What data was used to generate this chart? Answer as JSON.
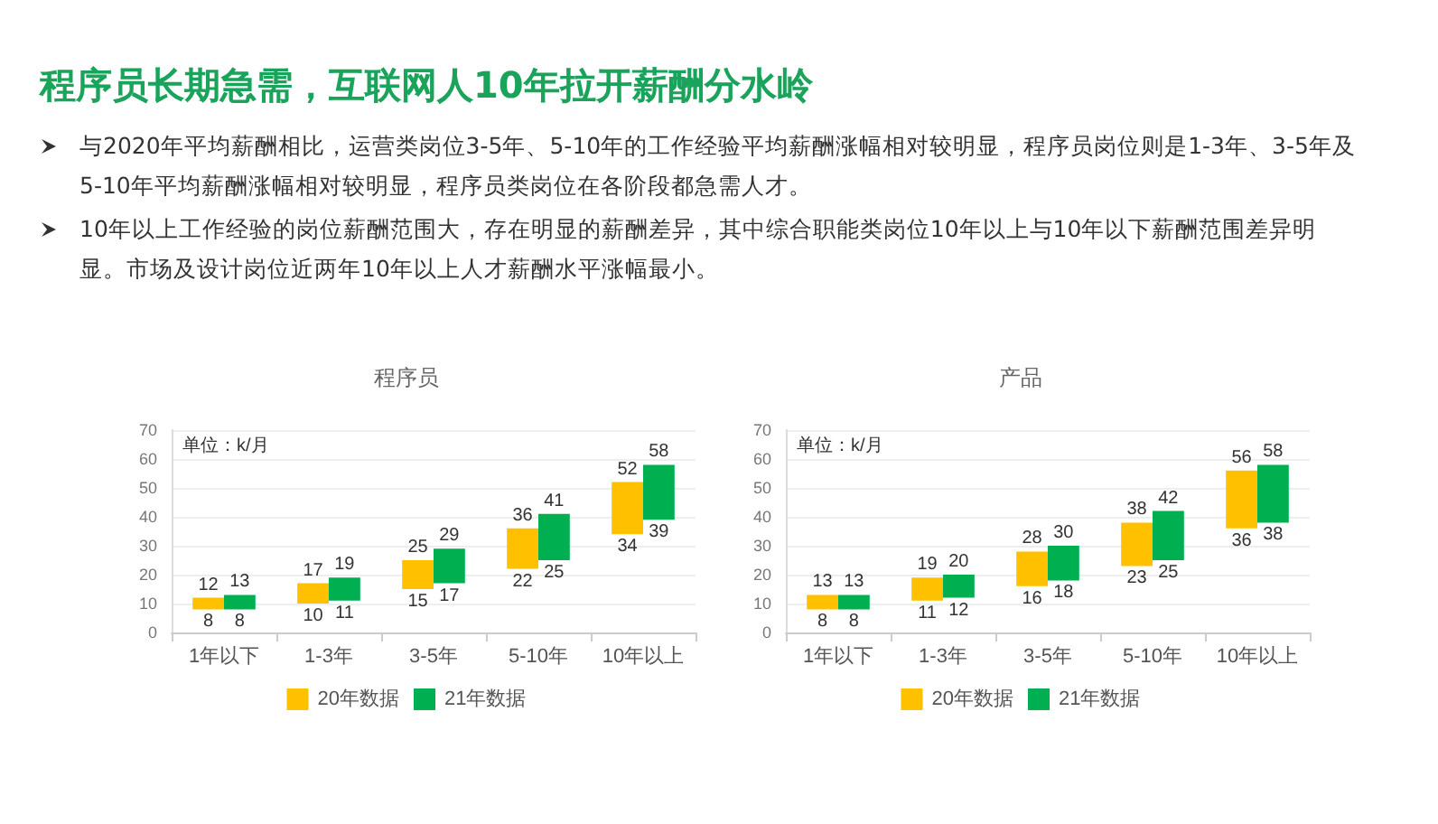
{
  "chart_data": [
    {
      "type": "other",
      "title": "程序员长期急需，互联网人10年拉开薪酬分水岭",
      "annotations": [
        "与2020年平均薪酬相比，运营类岗位3-5年、5-10年的工作经验平均薪酬涨幅相对较明显，程序员岗位则是1-3年、3-5年及5-10年平均薪酬涨幅相对较明显，程序员类岗位在各阶段都急需人才。",
        "10年以上工作经验的岗位薪酬范围大，存在明显的薪酬差异，其中综合职能类岗位10年以上与10年以下薪酬范围差异明显。市场及设计岗位近两年10年以上人才薪酬水平涨幅最小。"
      ]
    },
    {
      "type": "bar",
      "title": "程序员",
      "ylabel": "单位：k/月",
      "categories": [
        "1年以下",
        "1-3年",
        "3-5年",
        "5-10年",
        "10年以上"
      ],
      "series": [
        {
          "name": "20年数据",
          "color": "#ffc000",
          "base": [
            8,
            10,
            15,
            22,
            34
          ],
          "values": [
            4,
            7,
            10,
            14,
            18
          ],
          "value_labels": [
            "12",
            "17",
            "25",
            "36",
            "52"
          ]
        },
        {
          "name": "21年数据",
          "color": "#00b050",
          "base": [
            8,
            11,
            17,
            25,
            39
          ],
          "values": [
            5,
            8,
            12,
            16,
            19
          ],
          "value_labels": [
            "13",
            "19",
            "29",
            "41",
            "58"
          ]
        }
      ],
      "annotations": [
        {
          "text": "8",
          "x": "1年以下",
          "y": 8
        },
        {
          "text": "10",
          "x": "1-3年",
          "y": 10
        },
        {
          "text": "15",
          "x": "3-5年",
          "y": 15
        },
        {
          "text": "22",
          "x": "5-10年",
          "y": 22
        },
        {
          "text": "34",
          "x": "10年以上",
          "y": 34
        },
        {
          "text": "8",
          "x": "1年以下",
          "y": 8
        },
        {
          "text": "11",
          "x": "1-3年",
          "y": 11
        },
        {
          "text": "17",
          "x": "3-5年",
          "y": 17
        },
        {
          "text": "25",
          "x": "5-10年",
          "y": 25
        },
        {
          "text": "39",
          "x": "10年以上",
          "y": 39
        }
      ],
      "ylim": [
        0,
        70
      ],
      "yticks": [
        0,
        10,
        20,
        30,
        40,
        50,
        60,
        70
      ],
      "grid": "y",
      "legend": "bottom"
    },
    {
      "type": "bar",
      "title": "产品",
      "ylabel": "单位：k/月",
      "categories": [
        "1年以下",
        "1-3年",
        "3-5年",
        "5-10年",
        "10年以上"
      ],
      "series": [
        {
          "name": "20年数据",
          "color": "#ffc000",
          "base": [
            8,
            11,
            16,
            23,
            36
          ],
          "values": [
            5,
            8,
            12,
            15,
            20
          ],
          "value_labels": [
            "13",
            "19",
            "28",
            "38",
            "56"
          ]
        },
        {
          "name": "21年数据",
          "color": "#00b050",
          "base": [
            8,
            12,
            18,
            25,
            38
          ],
          "values": [
            5,
            8,
            12,
            17,
            20
          ],
          "value_labels": [
            "13",
            "20",
            "30",
            "42",
            "58"
          ]
        }
      ],
      "annotations": [
        {
          "text": "8",
          "x": "1年以下",
          "y": 8
        },
        {
          "text": "11",
          "x": "1-3年",
          "y": 11
        },
        {
          "text": "16",
          "x": "3-5年",
          "y": 16
        },
        {
          "text": "23",
          "x": "5-10年",
          "y": 23
        },
        {
          "text": "36",
          "x": "10年以上",
          "y": 36
        },
        {
          "text": "8",
          "x": "1年以下",
          "y": 8
        },
        {
          "text": "12",
          "x": "1-3年",
          "y": 12
        },
        {
          "text": "18",
          "x": "3-5年",
          "y": 18
        },
        {
          "text": "25",
          "x": "5-10年",
          "y": 25
        },
        {
          "text": "38",
          "x": "10年以上",
          "y": 38
        }
      ],
      "ylim": [
        0,
        70
      ],
      "yticks": [
        0,
        10,
        20,
        30,
        40,
        50,
        60,
        70
      ],
      "grid": "y",
      "legend": "bottom"
    }
  ]
}
